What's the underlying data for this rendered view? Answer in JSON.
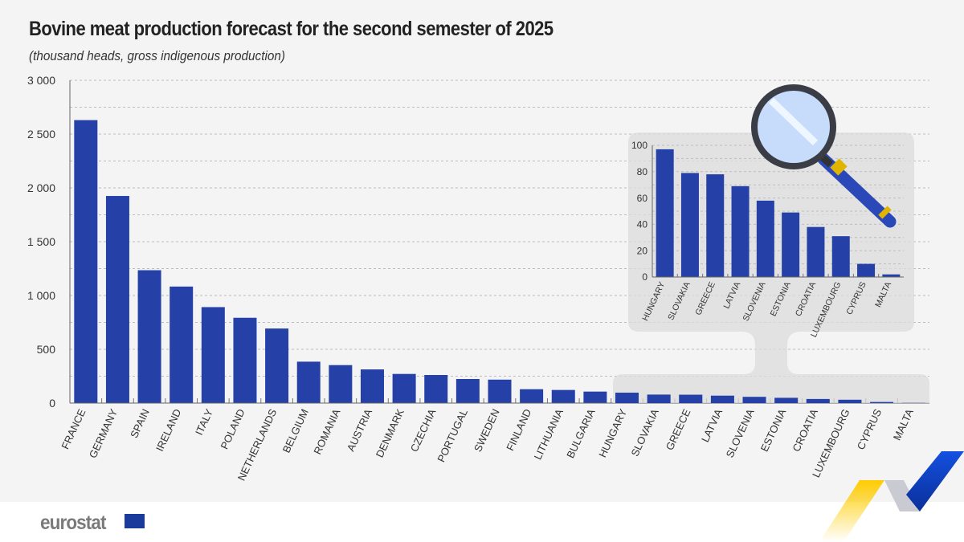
{
  "title": "Bovine meat production forecast for the second semester of 2025",
  "subtitle": "(thousand heads, gross indigenous production)",
  "logo_text": "eurostat",
  "colors": {
    "bar": "#2541a8",
    "background": "#f4f4f4",
    "inset": "#e3e3e3",
    "accent_yellow": "#ffcc00",
    "accent_blue": "#0f47c9"
  },
  "chart_data": [
    {
      "type": "bar",
      "title": "Bovine meat production forecast for the second semester of 2025",
      "subtitle": "(thousand heads, gross indigenous production)",
      "categories": [
        "FRANCE",
        "GERMANY",
        "SPAIN",
        "IRELAND",
        "ITALY",
        "POLAND",
        "NETHERLANDS",
        "BELGIUM",
        "ROMANIA",
        "AUSTRIA",
        "DENMARK",
        "CZECHIA",
        "PORTUGAL",
        "SWEDEN",
        "FINLAND",
        "LITHUANIA",
        "BULGARIA",
        "HUNGARY",
        "SLOVAKIA",
        "GREECE",
        "LATVIA",
        "SLOVENIA",
        "ESTONIA",
        "CROATIA",
        "LUXEMBOURG",
        "CYPRUS",
        "MALTA"
      ],
      "values": [
        2630,
        1925,
        1235,
        1083,
        892,
        793,
        693,
        385,
        353,
        313,
        271,
        261,
        224,
        218,
        129,
        122,
        107,
        97,
        79,
        78,
        69,
        58,
        49,
        38,
        31,
        10,
        2
      ],
      "ylim": [
        0,
        3000
      ],
      "yticks": [
        0,
        500,
        1000,
        1500,
        2000,
        2500,
        3000
      ],
      "ytick_labels": [
        "0",
        "500",
        "1 000",
        "1 500",
        "2 000",
        "2 500",
        "3 000"
      ],
      "grid": true
    },
    {
      "type": "bar",
      "categories": [
        "HUNGARY",
        "SLOVAKIA",
        "GREECE",
        "LATVIA",
        "SLOVENIA",
        "ESTONIA",
        "CROATIA",
        "LUXEMBOURG",
        "CYPRUS",
        "MALTA"
      ],
      "values": [
        97,
        79,
        78,
        69,
        58,
        49,
        38,
        31,
        10,
        2
      ],
      "ylim": [
        0,
        100
      ],
      "yticks": [
        0,
        20,
        40,
        60,
        80,
        100
      ],
      "ytick_labels": [
        "0",
        "20",
        "40",
        "60",
        "80",
        "100"
      ],
      "grid": true,
      "icon": "magnifying-glass-icon"
    }
  ]
}
